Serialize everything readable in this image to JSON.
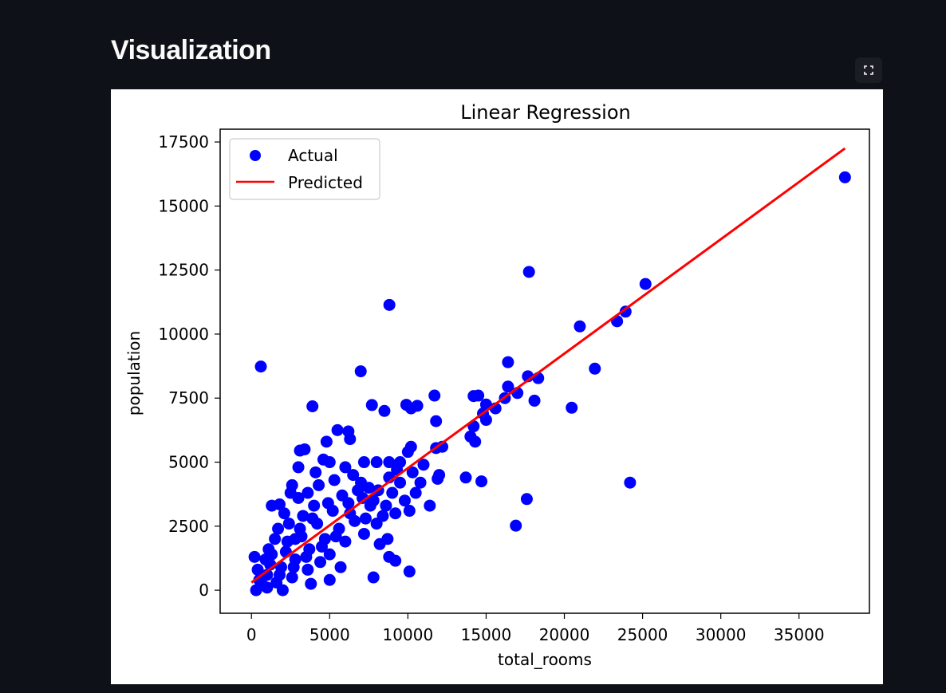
{
  "page": {
    "heading": "Visualization"
  },
  "toolbar": {
    "fullscreen_icon": "fullscreen-icon"
  },
  "chart_data": {
    "type": "scatter",
    "title": "Linear Regression",
    "xlabel": "total_rooms",
    "ylabel": "population",
    "xlim": [
      -2000,
      39500
    ],
    "ylim": [
      -900,
      18000
    ],
    "xticks": [
      0,
      5000,
      10000,
      15000,
      20000,
      25000,
      30000,
      35000
    ],
    "yticks": [
      0,
      2500,
      5000,
      7500,
      10000,
      12500,
      15000,
      17500
    ],
    "legend": {
      "position": "top-left",
      "entries": [
        "Actual",
        "Predicted"
      ]
    },
    "colors": {
      "actual": "#0000ff",
      "predicted": "#ff0000"
    },
    "series": [
      {
        "name": "Actual",
        "points": [
          [
            37937,
            16122
          ],
          [
            17740,
            12427
          ],
          [
            8817,
            11139
          ],
          [
            25187,
            11956
          ],
          [
            23915,
            10877
          ],
          [
            23370,
            10500
          ],
          [
            20990,
            10300
          ],
          [
            601,
            8733
          ],
          [
            6985,
            8548
          ],
          [
            16400,
            8903
          ],
          [
            21950,
            8650
          ],
          [
            17670,
            8350
          ],
          [
            18330,
            8280
          ],
          [
            16400,
            7950
          ],
          [
            17000,
            7700
          ],
          [
            14500,
            7600
          ],
          [
            11700,
            7600
          ],
          [
            14200,
            7580
          ],
          [
            16200,
            7500
          ],
          [
            18090,
            7400
          ],
          [
            15600,
            7100
          ],
          [
            15000,
            7250
          ],
          [
            20470,
            7125
          ],
          [
            3900,
            7180
          ],
          [
            7700,
            7230
          ],
          [
            9900,
            7240
          ],
          [
            10200,
            7100
          ],
          [
            10600,
            7200
          ],
          [
            8500,
            7000
          ],
          [
            14800,
            6900
          ],
          [
            15000,
            6650
          ],
          [
            14200,
            6400
          ],
          [
            11800,
            6600
          ],
          [
            14000,
            6000
          ],
          [
            14300,
            5800
          ],
          [
            12200,
            5600
          ],
          [
            11800,
            5550
          ],
          [
            10200,
            5600
          ],
          [
            10000,
            5400
          ],
          [
            8800,
            5000
          ],
          [
            9500,
            5000
          ],
          [
            8000,
            5000
          ],
          [
            7200,
            5000
          ],
          [
            12000,
            4500
          ],
          [
            11900,
            4350
          ],
          [
            13700,
            4400
          ],
          [
            14700,
            4250
          ],
          [
            24200,
            4200
          ],
          [
            17600,
            3560
          ],
          [
            11400,
            3300
          ],
          [
            10100,
            3100
          ],
          [
            9800,
            3500
          ],
          [
            16900,
            2520
          ],
          [
            8700,
            2000
          ],
          [
            8200,
            1800
          ],
          [
            8800,
            1300
          ],
          [
            9200,
            1150
          ],
          [
            10100,
            730
          ],
          [
            7800,
            500
          ],
          [
            5700,
            900
          ],
          [
            5000,
            400
          ],
          [
            3800,
            250
          ],
          [
            300,
            0
          ],
          [
            1000,
            100
          ],
          [
            2000,
            0
          ],
          [
            5500,
            6250
          ],
          [
            6200,
            6200
          ],
          [
            6300,
            5900
          ],
          [
            4800,
            5800
          ],
          [
            3400,
            5500
          ],
          [
            3100,
            5450
          ],
          [
            3000,
            4800
          ],
          [
            4600,
            5100
          ],
          [
            5000,
            5000
          ],
          [
            4100,
            4600
          ],
          [
            2600,
            4100
          ],
          [
            1300,
            3300
          ],
          [
            1800,
            3350
          ],
          [
            2500,
            3800
          ],
          [
            3000,
            3600
          ],
          [
            6000,
            4800
          ],
          [
            6500,
            4500
          ],
          [
            7000,
            4200
          ],
          [
            7500,
            4000
          ],
          [
            9000,
            3800
          ],
          [
            9500,
            4200
          ],
          [
            10500,
            3800
          ],
          [
            8600,
            3300
          ],
          [
            9200,
            3000
          ],
          [
            8000,
            2600
          ],
          [
            7200,
            2200
          ],
          [
            6000,
            1900
          ],
          [
            5000,
            1400
          ],
          [
            4400,
            1100
          ],
          [
            3600,
            800
          ],
          [
            2600,
            500
          ],
          [
            1600,
            300
          ],
          [
            700,
            200
          ],
          [
            400,
            800
          ],
          [
            200,
            1300
          ],
          [
            1200,
            1000
          ],
          [
            2200,
            1500
          ],
          [
            3200,
            2100
          ],
          [
            4200,
            2600
          ],
          [
            5200,
            3100
          ],
          [
            6200,
            3400
          ],
          [
            7100,
            3600
          ],
          [
            8100,
            3900
          ],
          [
            5600,
            2400
          ],
          [
            4700,
            2000
          ],
          [
            3700,
            1600
          ],
          [
            2800,
            1200
          ],
          [
            1900,
            900
          ],
          [
            1000,
            600
          ],
          [
            500,
            400
          ],
          [
            2400,
            2600
          ],
          [
            3300,
            2900
          ],
          [
            4000,
            3300
          ],
          [
            1500,
            2000
          ],
          [
            1100,
            1600
          ],
          [
            900,
            1200
          ],
          [
            1700,
            2400
          ],
          [
            2100,
            3000
          ],
          [
            2800,
            2000
          ],
          [
            3600,
            3800
          ],
          [
            4300,
            4100
          ],
          [
            5300,
            4300
          ],
          [
            5800,
            3700
          ],
          [
            6800,
            3900
          ],
          [
            7600,
            3300
          ],
          [
            8400,
            2900
          ],
          [
            6600,
            2700
          ],
          [
            5400,
            2100
          ],
          [
            4500,
            1700
          ],
          [
            3500,
            1300
          ],
          [
            2700,
            900
          ],
          [
            1800,
            600
          ],
          [
            1300,
            1400
          ],
          [
            2300,
            1900
          ],
          [
            3100,
            2400
          ],
          [
            3900,
            2800
          ],
          [
            4900,
            3400
          ],
          [
            6300,
            3000
          ],
          [
            7300,
            2800
          ],
          [
            7800,
            3500
          ],
          [
            8800,
            4400
          ],
          [
            9300,
            4700
          ],
          [
            10300,
            4600
          ],
          [
            11000,
            4900
          ],
          [
            10800,
            4200
          ]
        ]
      },
      {
        "name": "Predicted",
        "line": [
          [
            0,
            300
          ],
          [
            37937,
            17250
          ]
        ]
      }
    ]
  }
}
